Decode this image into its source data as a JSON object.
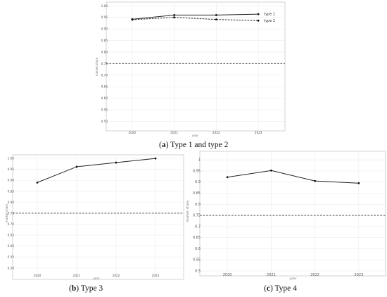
{
  "chart_data": [
    {
      "id": "a",
      "type": "line",
      "caption_letter": "a",
      "caption_text": "Type 1 and type 2",
      "xlabel": "year",
      "ylabel": "market share",
      "categories": [
        "2020",
        "2021",
        "2022",
        "2023"
      ],
      "ylim": [
        0.48,
        1.01
      ],
      "yticks": [
        {
          "value": 1.0,
          "label": "1.00"
        },
        {
          "value": 0.95,
          "label": "0.95"
        },
        {
          "value": 0.9,
          "label": "0.90"
        },
        {
          "value": 0.85,
          "label": "0.85"
        },
        {
          "value": 0.8,
          "label": "0.80"
        },
        {
          "value": 0.75,
          "label": "0.75"
        },
        {
          "value": 0.7,
          "label": "0.70"
        },
        {
          "value": 0.65,
          "label": "0.65"
        },
        {
          "value": 0.6,
          "label": "0.60"
        },
        {
          "value": 0.55,
          "label": "0.55"
        },
        {
          "value": 0.5,
          "label": "0.50"
        }
      ],
      "series": [
        {
          "name": "type 1",
          "style": "solid",
          "values": [
            0.942,
            0.96,
            0.96,
            0.964
          ]
        },
        {
          "name": "type 2",
          "style": "dashed",
          "values": [
            0.94,
            0.95,
            0.941,
            0.936
          ]
        }
      ],
      "reference_line": 0.75,
      "legend": "right",
      "grid": true
    },
    {
      "id": "b",
      "type": "line",
      "caption_letter": "b",
      "caption_text": "Type 3",
      "xlabel": "year",
      "ylabel": "market share",
      "categories": [
        "2020",
        "2021",
        "2022",
        "2023"
      ],
      "ylim": [
        0.48,
        1.01
      ],
      "yticks": [
        {
          "value": 1.0,
          "label": "1.00"
        },
        {
          "value": 0.95,
          "label": "0.95"
        },
        {
          "value": 0.9,
          "label": "0.90"
        },
        {
          "value": 0.85,
          "label": "0.85"
        },
        {
          "value": 0.8,
          "label": "0.80"
        },
        {
          "value": 0.75,
          "label": "0.75"
        },
        {
          "value": 0.7,
          "label": "0.70"
        },
        {
          "value": 0.65,
          "label": "0.65"
        },
        {
          "value": 0.6,
          "label": "0.60"
        },
        {
          "value": 0.55,
          "label": "0.55"
        },
        {
          "value": 0.5,
          "label": "0.50"
        }
      ],
      "series": [
        {
          "style": "solid",
          "values": [
            0.89,
            0.962,
            0.981,
            1.0
          ]
        }
      ],
      "reference_line": 0.75,
      "grid": true
    },
    {
      "id": "c",
      "type": "line",
      "caption_letter": "c",
      "caption_text": "Type 4",
      "xlabel": "year",
      "ylabel": "market share",
      "categories": [
        "2020",
        "2021",
        "2022",
        "2023"
      ],
      "ylim": [
        0.5,
        1.01
      ],
      "yticks": [
        {
          "value": 1.0,
          "label": "1"
        },
        {
          "value": 0.95,
          "label": "0.95"
        },
        {
          "value": 0.9,
          "label": "0.9"
        },
        {
          "value": 0.85,
          "label": "0.85"
        },
        {
          "value": 0.8,
          "label": "0.8"
        },
        {
          "value": 0.75,
          "label": "0.75"
        },
        {
          "value": 0.7,
          "label": "0.7"
        },
        {
          "value": 0.65,
          "label": "0.65"
        },
        {
          "value": 0.6,
          "label": "0.6"
        },
        {
          "value": 0.55,
          "label": "0.55"
        },
        {
          "value": 0.5,
          "label": "0.5"
        }
      ],
      "series": [
        {
          "style": "solid",
          "values": [
            0.922,
            0.952,
            0.905,
            0.895
          ]
        }
      ],
      "reference_line": 0.75,
      "grid": true
    }
  ]
}
